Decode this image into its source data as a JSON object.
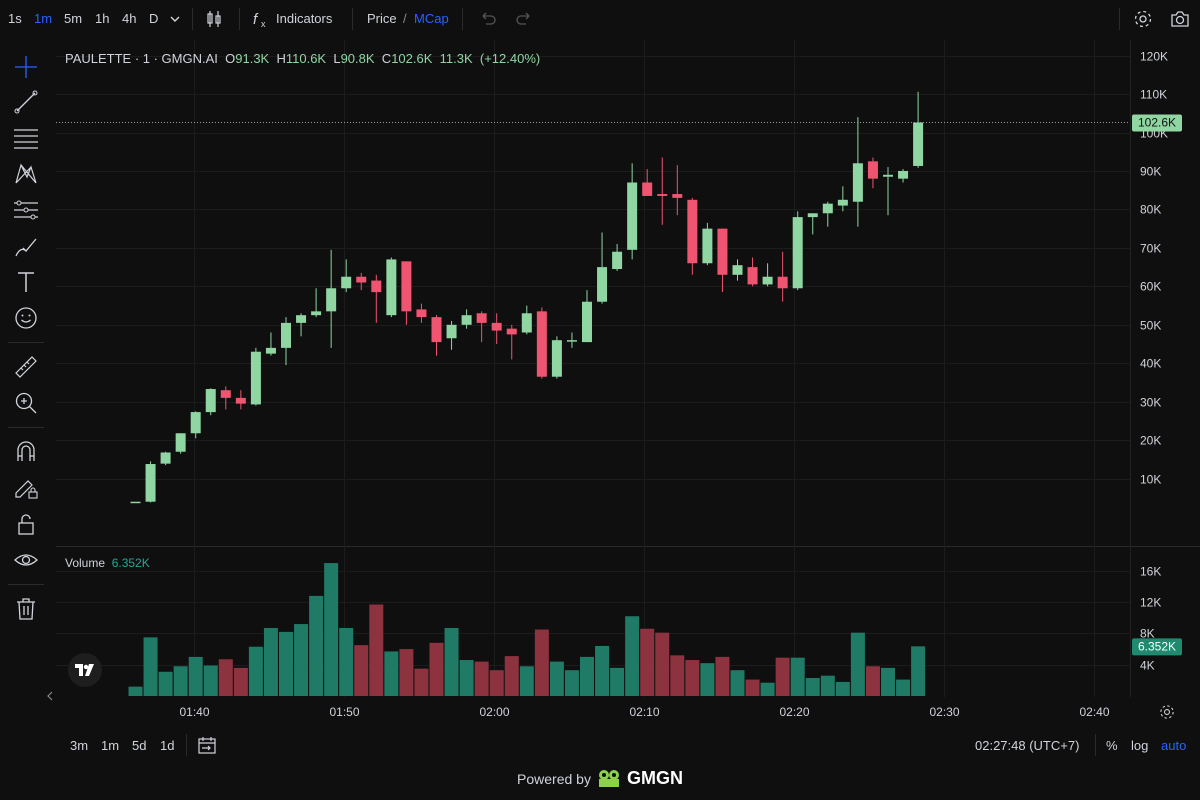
{
  "toolbar": {
    "timeframes": [
      "1s",
      "1m",
      "5m",
      "1h",
      "4h",
      "D"
    ],
    "active_timeframe": "1m",
    "indicators_label": "Indicators",
    "price_label": "Price",
    "price_sep": "/",
    "mcap_label": "MCap"
  },
  "legend": {
    "symbol": "PAULETTE · 1 · GMGN.AI",
    "open_label": "O",
    "open": "91.3K",
    "high_label": "H",
    "high": "110.6K",
    "low_label": "L",
    "low": "90.8K",
    "close_label": "C",
    "close": "102.6K",
    "volume": "11.3K",
    "change": "(+12.40%)"
  },
  "volume_legend": {
    "label": "Volume",
    "value": "6.352K"
  },
  "bottom": {
    "ranges": [
      "3m",
      "1m",
      "5d",
      "1d"
    ],
    "clock": "02:27:48 (UTC+7)",
    "percent": "%",
    "log": "log",
    "auto": "auto"
  },
  "powered": {
    "text": "Powered by",
    "brand": "GMGN"
  },
  "colors": {
    "up": "#8fd6a3",
    "down": "#ef5470",
    "vol_up": "#1f7a66",
    "vol_down": "#8d3340",
    "accent": "#2962ff"
  },
  "icons": [
    "bar-chart-icon",
    "fx-icon",
    "undo-icon",
    "redo-icon",
    "gear-icon",
    "camera-icon",
    "crosshair-icon",
    "trend-line-icon",
    "horizontal-lines-icon",
    "pattern-icon",
    "fib-icon",
    "brush-icon",
    "text-icon",
    "emoji-icon",
    "ruler-icon",
    "zoom-icon",
    "magnet-icon",
    "lock-pencil-icon",
    "lock-icon",
    "eye-icon",
    "trash-icon"
  ],
  "chart_data": {
    "type": "candlestick",
    "price_axis": {
      "ticks": [
        10,
        20,
        30,
        40,
        50,
        60,
        70,
        80,
        90,
        100,
        110,
        120
      ],
      "tick_labels": [
        "10K",
        "20K",
        "30K",
        "40K",
        "50K",
        "60K",
        "70K",
        "80K",
        "90K",
        "100K",
        "110K",
        "120K"
      ],
      "unit": "K"
    },
    "volume_axis": {
      "ticks": [
        4,
        8,
        12,
        16
      ],
      "tick_labels": [
        "4K",
        "8K",
        "12K",
        "16K"
      ],
      "unit": "K"
    },
    "time_axis": {
      "ticks": [
        "01:40",
        "01:50",
        "02:00",
        "02:10",
        "02:20",
        "02:30",
        "02:40"
      ]
    },
    "current_price": 102.6,
    "current_price_label": "102.6K",
    "current_volume_label": "6.352K",
    "candles": [
      {
        "t": "01:35",
        "o": 4.0,
        "h": 4.0,
        "l": 4.0,
        "c": 4.0,
        "v": 1.2
      },
      {
        "t": "01:36",
        "o": 4.0,
        "h": 14.5,
        "l": 3.8,
        "c": 13.8,
        "v": 7.5
      },
      {
        "t": "01:37",
        "o": 13.9,
        "h": 17.0,
        "l": 13.5,
        "c": 16.8,
        "v": 3.1
      },
      {
        "t": "01:38",
        "o": 17.0,
        "h": 21.8,
        "l": 16.5,
        "c": 21.8,
        "v": 3.8
      },
      {
        "t": "01:39",
        "o": 21.8,
        "h": 27.5,
        "l": 20.5,
        "c": 27.3,
        "v": 5.0
      },
      {
        "t": "01:40",
        "o": 27.3,
        "h": 33.5,
        "l": 26.5,
        "c": 33.3,
        "v": 3.9
      },
      {
        "t": "01:41",
        "o": 33.0,
        "h": 34.0,
        "l": 28.0,
        "c": 31.0,
        "v": 4.7
      },
      {
        "t": "01:42",
        "o": 31.0,
        "h": 33.0,
        "l": 28.0,
        "c": 29.5,
        "v": 3.6
      },
      {
        "t": "01:43",
        "o": 29.3,
        "h": 44.0,
        "l": 29.0,
        "c": 43.0,
        "v": 6.3
      },
      {
        "t": "01:44",
        "o": 42.5,
        "h": 48.0,
        "l": 42.0,
        "c": 44.0,
        "v": 8.7
      },
      {
        "t": "01:45",
        "o": 44.0,
        "h": 52.0,
        "l": 39.5,
        "c": 50.5,
        "v": 8.2
      },
      {
        "t": "01:46",
        "o": 50.5,
        "h": 53.0,
        "l": 47.0,
        "c": 52.5,
        "v": 9.2
      },
      {
        "t": "01:47",
        "o": 52.5,
        "h": 59.5,
        "l": 52.0,
        "c": 53.5,
        "v": 12.8
      },
      {
        "t": "01:48",
        "o": 53.5,
        "h": 69.5,
        "l": 44.0,
        "c": 59.5,
        "v": 17.0
      },
      {
        "t": "01:49",
        "o": 59.5,
        "h": 67.0,
        "l": 58.5,
        "c": 62.5,
        "v": 8.7
      },
      {
        "t": "01:50",
        "o": 62.5,
        "h": 63.5,
        "l": 59.0,
        "c": 61.0,
        "v": 6.5
      },
      {
        "t": "01:51",
        "o": 61.5,
        "h": 63.0,
        "l": 50.5,
        "c": 58.5,
        "v": 11.7
      },
      {
        "t": "01:52",
        "o": 52.5,
        "h": 67.5,
        "l": 52.0,
        "c": 67.0,
        "v": 5.7
      },
      {
        "t": "01:53",
        "o": 66.5,
        "h": 66.5,
        "l": 50.0,
        "c": 53.5,
        "v": 6.0
      },
      {
        "t": "01:54",
        "o": 54.0,
        "h": 55.5,
        "l": 50.5,
        "c": 52.0,
        "v": 3.5
      },
      {
        "t": "01:55",
        "o": 52.0,
        "h": 52.5,
        "l": 42.0,
        "c": 45.5,
        "v": 6.8
      },
      {
        "t": "01:56",
        "o": 46.5,
        "h": 51.0,
        "l": 43.5,
        "c": 50.0,
        "v": 8.7
      },
      {
        "t": "01:57",
        "o": 50.0,
        "h": 54.0,
        "l": 49.0,
        "c": 52.5,
        "v": 4.6
      },
      {
        "t": "01:58",
        "o": 53.0,
        "h": 53.5,
        "l": 45.5,
        "c": 50.5,
        "v": 4.4
      },
      {
        "t": "01:59",
        "o": 50.5,
        "h": 53.0,
        "l": 45.0,
        "c": 48.5,
        "v": 3.3
      },
      {
        "t": "02:00",
        "o": 49.0,
        "h": 50.0,
        "l": 41.0,
        "c": 47.5,
        "v": 5.1
      },
      {
        "t": "02:01",
        "o": 48.0,
        "h": 55.0,
        "l": 47.5,
        "c": 53.0,
        "v": 3.8
      },
      {
        "t": "02:02",
        "o": 53.5,
        "h": 54.5,
        "l": 36.0,
        "c": 36.5,
        "v": 8.5
      },
      {
        "t": "02:03",
        "o": 36.5,
        "h": 47.0,
        "l": 36.0,
        "c": 46.0,
        "v": 4.4
      },
      {
        "t": "02:04",
        "o": 46.0,
        "h": 48.0,
        "l": 44.0,
        "c": 46.0,
        "v": 3.3
      },
      {
        "t": "02:05",
        "o": 45.5,
        "h": 59.0,
        "l": 45.5,
        "c": 56.0,
        "v": 5.0
      },
      {
        "t": "02:06",
        "o": 56.0,
        "h": 74.0,
        "l": 55.5,
        "c": 65.0,
        "v": 6.4
      },
      {
        "t": "02:07",
        "o": 64.5,
        "h": 71.0,
        "l": 64.0,
        "c": 69.0,
        "v": 3.6
      },
      {
        "t": "02:08",
        "o": 69.5,
        "h": 92.0,
        "l": 67.0,
        "c": 87.0,
        "v": 10.2
      },
      {
        "t": "02:09",
        "o": 87.0,
        "h": 90.5,
        "l": 84.0,
        "c": 83.5,
        "v": 8.6
      },
      {
        "t": "02:10",
        "o": 84.0,
        "h": 93.5,
        "l": 76.0,
        "c": 83.5,
        "v": 8.1
      },
      {
        "t": "02:11",
        "o": 84.0,
        "h": 91.5,
        "l": 78.5,
        "c": 83.0,
        "v": 5.2
      },
      {
        "t": "02:12",
        "o": 82.5,
        "h": 83.0,
        "l": 63.0,
        "c": 66.0,
        "v": 4.6
      },
      {
        "t": "02:13",
        "o": 66.0,
        "h": 76.5,
        "l": 65.5,
        "c": 75.0,
        "v": 4.2
      },
      {
        "t": "02:14",
        "o": 75.0,
        "h": 75.0,
        "l": 58.5,
        "c": 63.0,
        "v": 5.0
      },
      {
        "t": "02:15",
        "o": 63.0,
        "h": 67.0,
        "l": 61.5,
        "c": 65.5,
        "v": 3.3
      },
      {
        "t": "02:16",
        "o": 65.0,
        "h": 67.5,
        "l": 60.0,
        "c": 60.5,
        "v": 2.1
      },
      {
        "t": "02:17",
        "o": 60.5,
        "h": 66.0,
        "l": 60.0,
        "c": 62.5,
        "v": 1.7
      },
      {
        "t": "02:18",
        "o": 62.5,
        "h": 69.0,
        "l": 56.0,
        "c": 59.5,
        "v": 4.9
      },
      {
        "t": "02:19",
        "o": 59.5,
        "h": 79.5,
        "l": 59.0,
        "c": 78.0,
        "v": 4.9
      },
      {
        "t": "02:20",
        "o": 78.0,
        "h": 79.0,
        "l": 73.5,
        "c": 79.0,
        "v": 2.3
      },
      {
        "t": "02:21",
        "o": 79.0,
        "h": 82.0,
        "l": 75.5,
        "c": 81.5,
        "v": 2.6
      },
      {
        "t": "02:22",
        "o": 81.0,
        "h": 86.0,
        "l": 79.5,
        "c": 82.5,
        "v": 1.8
      },
      {
        "t": "02:23",
        "o": 82.0,
        "h": 104.0,
        "l": 75.5,
        "c": 92.0,
        "v": 8.1
      },
      {
        "t": "02:24",
        "o": 92.5,
        "h": 93.5,
        "l": 85.5,
        "c": 88.0,
        "v": 3.8
      },
      {
        "t": "02:25",
        "o": 88.5,
        "h": 91.0,
        "l": 78.5,
        "c": 89.0,
        "v": 3.6
      },
      {
        "t": "02:26",
        "o": 88.0,
        "h": 90.5,
        "l": 87.0,
        "c": 90.0,
        "v": 2.1
      },
      {
        "t": "02:27",
        "o": 91.3,
        "h": 110.6,
        "l": 90.8,
        "c": 102.6,
        "v": 6.352
      }
    ]
  }
}
